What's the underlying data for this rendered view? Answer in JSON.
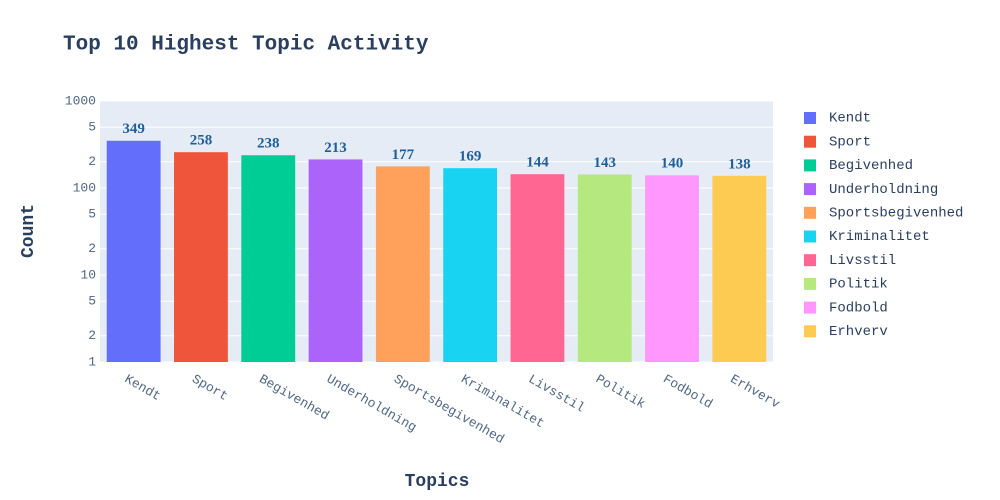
{
  "chart_data": {
    "type": "bar",
    "title": "Top 10 Highest Topic Activity",
    "x_label": "Topics",
    "y_label": "Count",
    "categories": [
      "Kendt",
      "Sport",
      "Begivenhed",
      "Underholdning",
      "Sportsbegivenhed",
      "Kriminalitet",
      "Livsstil",
      "Politik",
      "Fodbold",
      "Erhverv"
    ],
    "values": [
      349,
      258,
      238,
      213,
      177,
      169,
      144,
      143,
      140,
      138
    ],
    "colors": [
      "#636efa",
      "#ef553b",
      "#00cc96",
      "#ab63fa",
      "#ffa15a",
      "#19d3f3",
      "#ff6692",
      "#b6e880",
      "#ff97ff",
      "#fecb52"
    ],
    "log_y": true,
    "ylim": [
      1,
      1000
    ],
    "yticks": [
      1,
      2,
      5,
      10,
      {
        "value": 20,
        "label": "2"
      },
      {
        "value": 50,
        "label": "5"
      },
      100,
      {
        "value": 200,
        "label": "2"
      },
      {
        "value": 500,
        "label": "5"
      },
      1000
    ],
    "grid": true,
    "legend": "right"
  }
}
